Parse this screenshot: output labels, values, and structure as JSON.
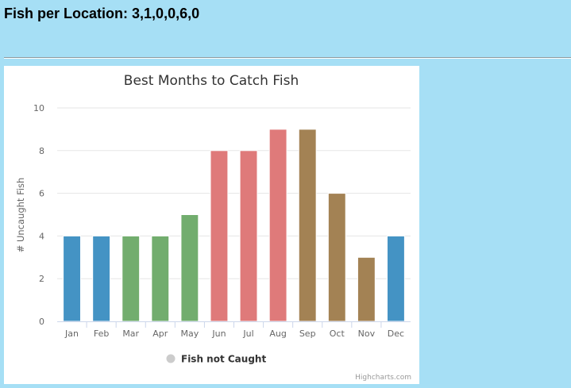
{
  "page": {
    "heading_label": "Fish per Location:",
    "heading_values": "3,1,0,0,6,0"
  },
  "chart_data": {
    "type": "bar",
    "title": "Best Months to Catch Fish",
    "ylabel": "# Uncaught Fish",
    "xlabel": "",
    "ylim": [
      0,
      10
    ],
    "yticks": [
      0,
      2,
      4,
      6,
      8,
      10
    ],
    "grid": true,
    "categories": [
      "Jan",
      "Feb",
      "Mar",
      "Apr",
      "May",
      "Jun",
      "Jul",
      "Aug",
      "Sep",
      "Oct",
      "Nov",
      "Dec"
    ],
    "values": [
      4,
      4,
      4,
      4,
      5,
      8,
      8,
      9,
      9,
      6,
      3,
      4
    ],
    "bar_colors": [
      "#4493c4",
      "#4493c4",
      "#72ad6e",
      "#72ad6e",
      "#72ad6e",
      "#df7a7a",
      "#df7a7a",
      "#df7a7a",
      "#a38254",
      "#a38254",
      "#a38254",
      "#4493c4"
    ],
    "legend": {
      "label": "Fish not Caught",
      "marker_color": "#cccccc",
      "position": "bottom-center"
    },
    "credits": "Highcharts.com"
  }
}
